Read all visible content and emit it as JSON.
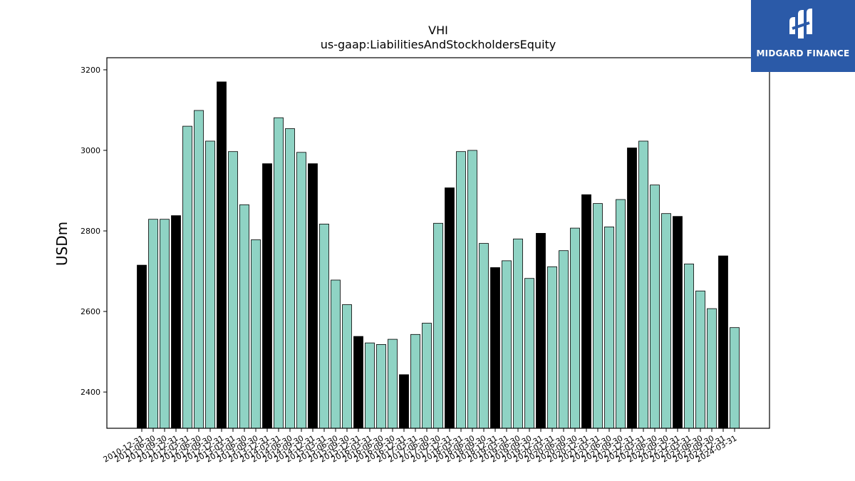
{
  "colors": {
    "highlight": "#000000",
    "normal": "#8fd3c4",
    "logo_bg": "#2b5aa8"
  },
  "logo": {
    "text": "MIDGARD FINANCE",
    "icon": "midgard-logo-icon"
  },
  "chart_data": {
    "type": "bar",
    "title": "VHI",
    "subtitle": "us-gaap:LiabilitiesAndStockholdersEquity",
    "xlabel": "",
    "ylabel": "USDm",
    "ylim": [
      2310,
      3230
    ],
    "yticks": [
      2400,
      2600,
      2800,
      3000,
      3200
    ],
    "grid": false,
    "categories": [
      "2010-12-31",
      "2011-06-30",
      "2011-09-30",
      "2011-12-31",
      "2012-03-31",
      "2012-06-30",
      "2012-09-30",
      "2012-12-31",
      "2013-03-31",
      "2013-06-30",
      "2013-09-30",
      "2013-12-31",
      "2014-03-31",
      "2014-06-30",
      "2014-09-30",
      "2014-12-31",
      "2015-03-31",
      "2015-06-30",
      "2015-09-30",
      "2015-12-31",
      "2016-03-31",
      "2016-06-30",
      "2016-09-30",
      "2016-12-31",
      "2017-03-31",
      "2017-06-30",
      "2017-09-30",
      "2017-12-31",
      "2018-03-31",
      "2018-06-30",
      "2018-09-30",
      "2018-12-31",
      "2019-03-31",
      "2019-06-30",
      "2019-09-30",
      "2019-12-31",
      "2020-03-31",
      "2020-06-30",
      "2020-09-30",
      "2020-12-31",
      "2021-03-31",
      "2021-06-30",
      "2021-09-30",
      "2021-12-31",
      "2022-03-31",
      "2022-06-30",
      "2022-09-30",
      "2022-12-31",
      "2023-03-31",
      "2023-06-30",
      "2023-09-30",
      "2023-12-31",
      "2024-03-31"
    ],
    "values": [
      2715,
      2829,
      2829,
      2838,
      3060,
      3099,
      3023,
      3170,
      2997,
      2865,
      2778,
      2967,
      3081,
      3054,
      2995,
      2967,
      2817,
      2678,
      2617,
      2538,
      2522,
      2518,
      2531,
      2443,
      2543,
      2571,
      2819,
      2907,
      2997,
      3000,
      2769,
      2709,
      2726,
      2780,
      2682,
      2794,
      2711,
      2751,
      2807,
      2890,
      2868,
      2810,
      2878,
      3006,
      3023,
      2914,
      2843,
      2836,
      2718,
      2651,
      2607,
      2738,
      2560
    ],
    "highlight": [
      true,
      false,
      false,
      true,
      false,
      false,
      false,
      true,
      false,
      false,
      false,
      true,
      false,
      false,
      false,
      true,
      false,
      false,
      false,
      true,
      false,
      false,
      false,
      true,
      false,
      false,
      false,
      true,
      false,
      false,
      false,
      true,
      false,
      false,
      false,
      true,
      false,
      false,
      false,
      true,
      false,
      false,
      false,
      true,
      false,
      false,
      false,
      true,
      false,
      false,
      false,
      true,
      false
    ]
  }
}
